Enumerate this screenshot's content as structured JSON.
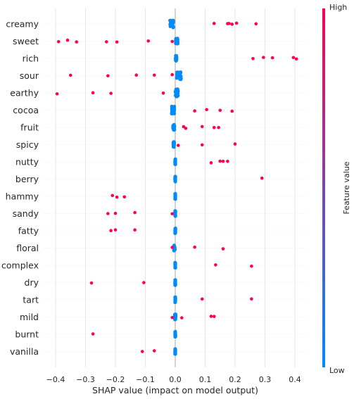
{
  "chart_data": {
    "type": "scatter",
    "subtype": "shap-beeswarm-summary",
    "xlabel": "SHAP value (impact on model output)",
    "xlim": [
      -0.44,
      0.44
    ],
    "xticks": [
      -0.4,
      -0.3,
      -0.2,
      -0.1,
      0.0,
      0.1,
      0.2,
      0.3,
      0.4
    ],
    "xtick_labels": [
      "−0.4",
      "−0.3",
      "−0.2",
      "−0.1",
      "0.0",
      "0.1",
      "0.2",
      "0.3",
      "0.4"
    ],
    "grid": true,
    "colorbar": {
      "label": "Feature value",
      "high_label": "High",
      "low_label": "Low",
      "high_color": "#ff0052",
      "low_color": "#008bfb"
    },
    "features": [
      {
        "name": "creamy",
        "low_center": -0.012,
        "low_spread": 0.006,
        "high_values": [
          0.13,
          0.175,
          0.18,
          0.19,
          0.205,
          0.27
        ]
      },
      {
        "name": "sweet",
        "low_center": 0.005,
        "low_spread": 0.004,
        "high_values": [
          -0.39,
          -0.36,
          -0.33,
          -0.23,
          -0.195,
          -0.09,
          -0.01
        ]
      },
      {
        "name": "rich",
        "low_center": 0.003,
        "low_spread": 0.002,
        "high_values": [
          0.26,
          0.295,
          0.325,
          0.395,
          0.405
        ]
      },
      {
        "name": "sour",
        "low_center": 0.012,
        "low_spread": 0.008,
        "high_values": [
          -0.35,
          -0.225,
          -0.13,
          -0.07,
          -0.01
        ]
      },
      {
        "name": "earthy",
        "low_center": 0.005,
        "low_spread": 0.005,
        "high_values": [
          -0.395,
          -0.275,
          -0.215,
          -0.04
        ]
      },
      {
        "name": "cocoa",
        "low_center": -0.008,
        "low_spread": 0.006,
        "high_values": [
          0.065,
          0.105,
          0.15,
          0.19
        ]
      },
      {
        "name": "fruit",
        "low_center": -0.005,
        "low_spread": 0.003,
        "high_values": [
          0.028,
          0.035,
          0.09,
          0.13,
          0.145
        ]
      },
      {
        "name": "spicy",
        "low_center": -0.005,
        "low_spread": 0.002,
        "high_values": [
          0.01,
          0.09,
          0.2
        ]
      },
      {
        "name": "nutty",
        "low_center": 0.0,
        "low_spread": 0.001,
        "high_values": [
          0.12,
          0.15,
          0.16,
          0.175
        ]
      },
      {
        "name": "berry",
        "low_center": 0.0,
        "low_spread": 0.001,
        "high_values": [
          0.29
        ]
      },
      {
        "name": "hammy",
        "low_center": 0.0,
        "low_spread": 0.001,
        "high_values": [
          -0.21,
          -0.195,
          -0.17
        ]
      },
      {
        "name": "sandy",
        "low_center": 0.0,
        "low_spread": 0.001,
        "high_values": [
          -0.225,
          -0.2,
          -0.135,
          -0.01
        ]
      },
      {
        "name": "fatty",
        "low_center": 0.0,
        "low_spread": 0.001,
        "high_values": [
          -0.215,
          -0.2,
          -0.135
        ]
      },
      {
        "name": "floral",
        "low_center": -0.003,
        "low_spread": 0.002,
        "high_values": [
          -0.01,
          0.065,
          0.16
        ]
      },
      {
        "name": "complex",
        "low_center": 0.0,
        "low_spread": 0.001,
        "high_values": [
          0.135,
          0.255
        ]
      },
      {
        "name": "dry",
        "low_center": 0.0,
        "low_spread": 0.001,
        "high_values": [
          -0.28,
          -0.105
        ]
      },
      {
        "name": "tart",
        "low_center": 0.0,
        "low_spread": 0.001,
        "high_values": [
          0.09,
          0.255
        ]
      },
      {
        "name": "mild",
        "low_center": 0.0,
        "low_spread": 0.002,
        "high_values": [
          -0.01,
          0.022,
          0.12,
          0.13
        ]
      },
      {
        "name": "burnt",
        "low_center": 0.0,
        "low_spread": 0.001,
        "high_values": [
          -0.275
        ]
      },
      {
        "name": "vanilla",
        "low_center": 0.0,
        "low_spread": 0.001,
        "high_values": [
          -0.11,
          -0.07
        ]
      }
    ]
  }
}
